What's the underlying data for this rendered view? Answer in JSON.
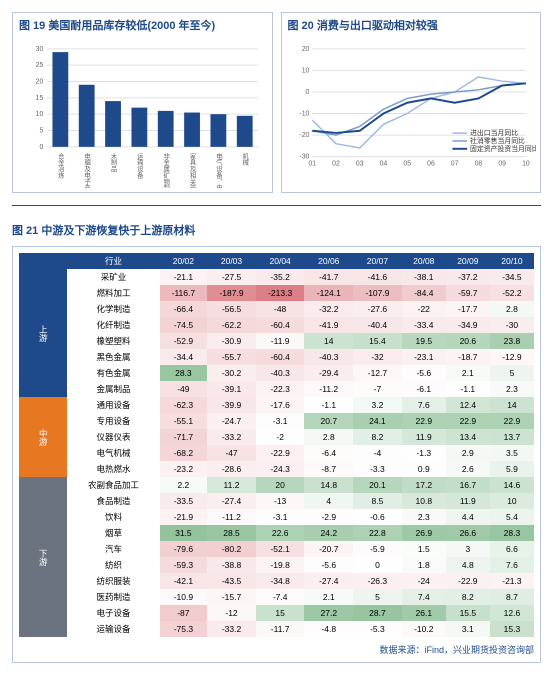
{
  "chart19": {
    "title": "图 19 美国耐用品库存较低(2000 年至今)",
    "type": "bar",
    "categories": [
      "合金冶炼",
      "电脑及电子产品",
      "木制品",
      "运输设备",
      "非金属矿物制品",
      "家具及相关产品",
      "电气设备、电器及零件",
      "机械"
    ],
    "values": [
      29,
      19,
      14,
      12,
      11,
      10.5,
      10,
      9.5
    ],
    "ylim": [
      0,
      30
    ],
    "ytick_step": 5,
    "bar_color": "#1e4a8c",
    "grid_color": "#e0e0e0",
    "bg": "#ffffff",
    "label_fontsize": 7
  },
  "chart20": {
    "title": "图 20 消费与出口驱动相对较强",
    "type": "line",
    "x": [
      "01",
      "02",
      "03",
      "04",
      "05",
      "06",
      "07",
      "08",
      "09",
      "10"
    ],
    "series": [
      {
        "name": "进出口当月同比",
        "color": "#9db9e8",
        "width": 1.5,
        "values": [
          -13,
          -24,
          -26,
          -15,
          -10,
          -3,
          0,
          7,
          5,
          4
        ]
      },
      {
        "name": "社消零售当月同比",
        "color": "#7a99cc",
        "width": 1.5,
        "values": [
          -18,
          -20,
          -16,
          -8,
          -3,
          -1,
          0,
          1,
          3,
          4
        ]
      },
      {
        "name": "固定资产投资当月同比",
        "color": "#1e4a8c",
        "width": 2,
        "values": [
          -18,
          -19,
          -18,
          -10,
          -5,
          -3,
          -5,
          -3,
          3,
          4
        ]
      }
    ],
    "ylim": [
      -30,
      20
    ],
    "ytick_step": 10,
    "grid_color": "#e0e0e0",
    "bg": "#ffffff",
    "legend_pos": "bottom-right"
  },
  "table21": {
    "title": "图 21 中游及下游恢复快于上游原材料",
    "col_header": "行业",
    "columns": [
      "20/02",
      "20/03",
      "20/04",
      "20/06",
      "20/07",
      "20/08",
      "20/09",
      "20/10"
    ],
    "sections": [
      {
        "name": "上游",
        "class": "section-up",
        "rows": [
          {
            "label": "采矿业",
            "v": [
              -21.1,
              -27.5,
              -35.2,
              -41.7,
              -41.6,
              -38.1,
              -37.2,
              -34.5
            ]
          },
          {
            "label": "燃料加工",
            "v": [
              -116.7,
              -187.9,
              -213.3,
              -124.1,
              -107.9,
              -84.4,
              -59.7,
              -52.2
            ]
          },
          {
            "label": "化学制造",
            "v": [
              -66.4,
              -56.5,
              -48,
              -32.2,
              -27.6,
              -22,
              -17.7,
              2.8
            ]
          },
          {
            "label": "化纤制造",
            "v": [
              -74.5,
              -62.2,
              -60.4,
              -41.9,
              -40.4,
              -33.4,
              -34.9,
              -30
            ]
          },
          {
            "label": "橡塑塑料",
            "v": [
              -52.9,
              -30.9,
              -11.9,
              14,
              15.4,
              19.5,
              20.6,
              23.8
            ]
          },
          {
            "label": "黑色金属",
            "v": [
              -34.4,
              -55.7,
              -60.4,
              -40.3,
              -32,
              -23.1,
              -18.7,
              -12.9
            ]
          },
          {
            "label": "有色金属",
            "v": [
              28.3,
              -30.2,
              -40.3,
              -29.4,
              -12.7,
              -5.6,
              2.1,
              5
            ]
          },
          {
            "label": "金属制品",
            "v": [
              -49,
              -39.1,
              -22.3,
              -11.2,
              -7,
              -6.1,
              -1.1,
              2.3
            ]
          }
        ]
      },
      {
        "name": "中游",
        "class": "section-mid",
        "rows": [
          {
            "label": "通用设备",
            "v": [
              -62.3,
              -39.9,
              -17.6,
              -1.1,
              3.2,
              7.6,
              12.4,
              14
            ]
          },
          {
            "label": "专用设备",
            "v": [
              -55.1,
              -24.7,
              -3.1,
              20.7,
              24.1,
              22.9,
              22.9,
              22.9
            ]
          },
          {
            "label": "仪器仪表",
            "v": [
              -71.7,
              -33.2,
              -2,
              2.8,
              8.2,
              11.9,
              13.4,
              13.7
            ]
          },
          {
            "label": "电气机械",
            "v": [
              -68.2,
              -47,
              -22.9,
              -6.4,
              -4,
              -1.3,
              2.9,
              3.5
            ]
          },
          {
            "label": "电热燃水",
            "v": [
              -23.2,
              -28.6,
              -24.3,
              -8.7,
              -3.3,
              0.9,
              2.6,
              5.9
            ]
          }
        ]
      },
      {
        "name": "下游",
        "class": "section-dn",
        "rows": [
          {
            "label": "农副食品加工",
            "v": [
              2.2,
              11.2,
              20,
              14.8,
              20.1,
              17.2,
              16.7,
              14.6
            ]
          },
          {
            "label": "食品制造",
            "v": [
              -33.5,
              -27.4,
              -13,
              4,
              8.5,
              10.8,
              11.9,
              10
            ]
          },
          {
            "label": "饮料",
            "v": [
              -21.9,
              -11.2,
              -3.1,
              -2.9,
              -0.6,
              2.3,
              4.4,
              5.4
            ]
          },
          {
            "label": "烟草",
            "v": [
              31.5,
              28.5,
              22.6,
              24.2,
              22.8,
              26.9,
              26.6,
              28.3
            ]
          },
          {
            "label": "汽车",
            "v": [
              -79.6,
              -80.2,
              -52.1,
              -20.7,
              -5.9,
              1.5,
              3,
              6.6
            ]
          },
          {
            "label": "纺织",
            "v": [
              -59.3,
              -38.8,
              -19.8,
              -5.6,
              0,
              1.8,
              4.8,
              7.6
            ]
          },
          {
            "label": "纺织服装",
            "v": [
              -42.1,
              -43.5,
              -34.8,
              -27.4,
              -26.3,
              -24,
              -22.9,
              -21.3
            ]
          },
          {
            "label": "医药制造",
            "v": [
              -10.9,
              -15.7,
              -7.4,
              2.1,
              5,
              7.4,
              8.2,
              8.7
            ]
          },
          {
            "label": "电子设备",
            "v": [
              -87,
              -12,
              15,
              27.2,
              28.7,
              26.1,
              15.5,
              12.6
            ]
          },
          {
            "label": "运输设备",
            "v": [
              -75.3,
              -33.2,
              -11.7,
              -4.8,
              -5.3,
              -10.2,
              3.1,
              15.3
            ]
          }
        ]
      }
    ],
    "source": "数据来源：iFind，兴业期货投资咨询部",
    "color_scale": {
      "min": "#d4636b",
      "mid": "#ffffff",
      "max": "#7fb88a",
      "range": [
        -220,
        30
      ]
    }
  }
}
